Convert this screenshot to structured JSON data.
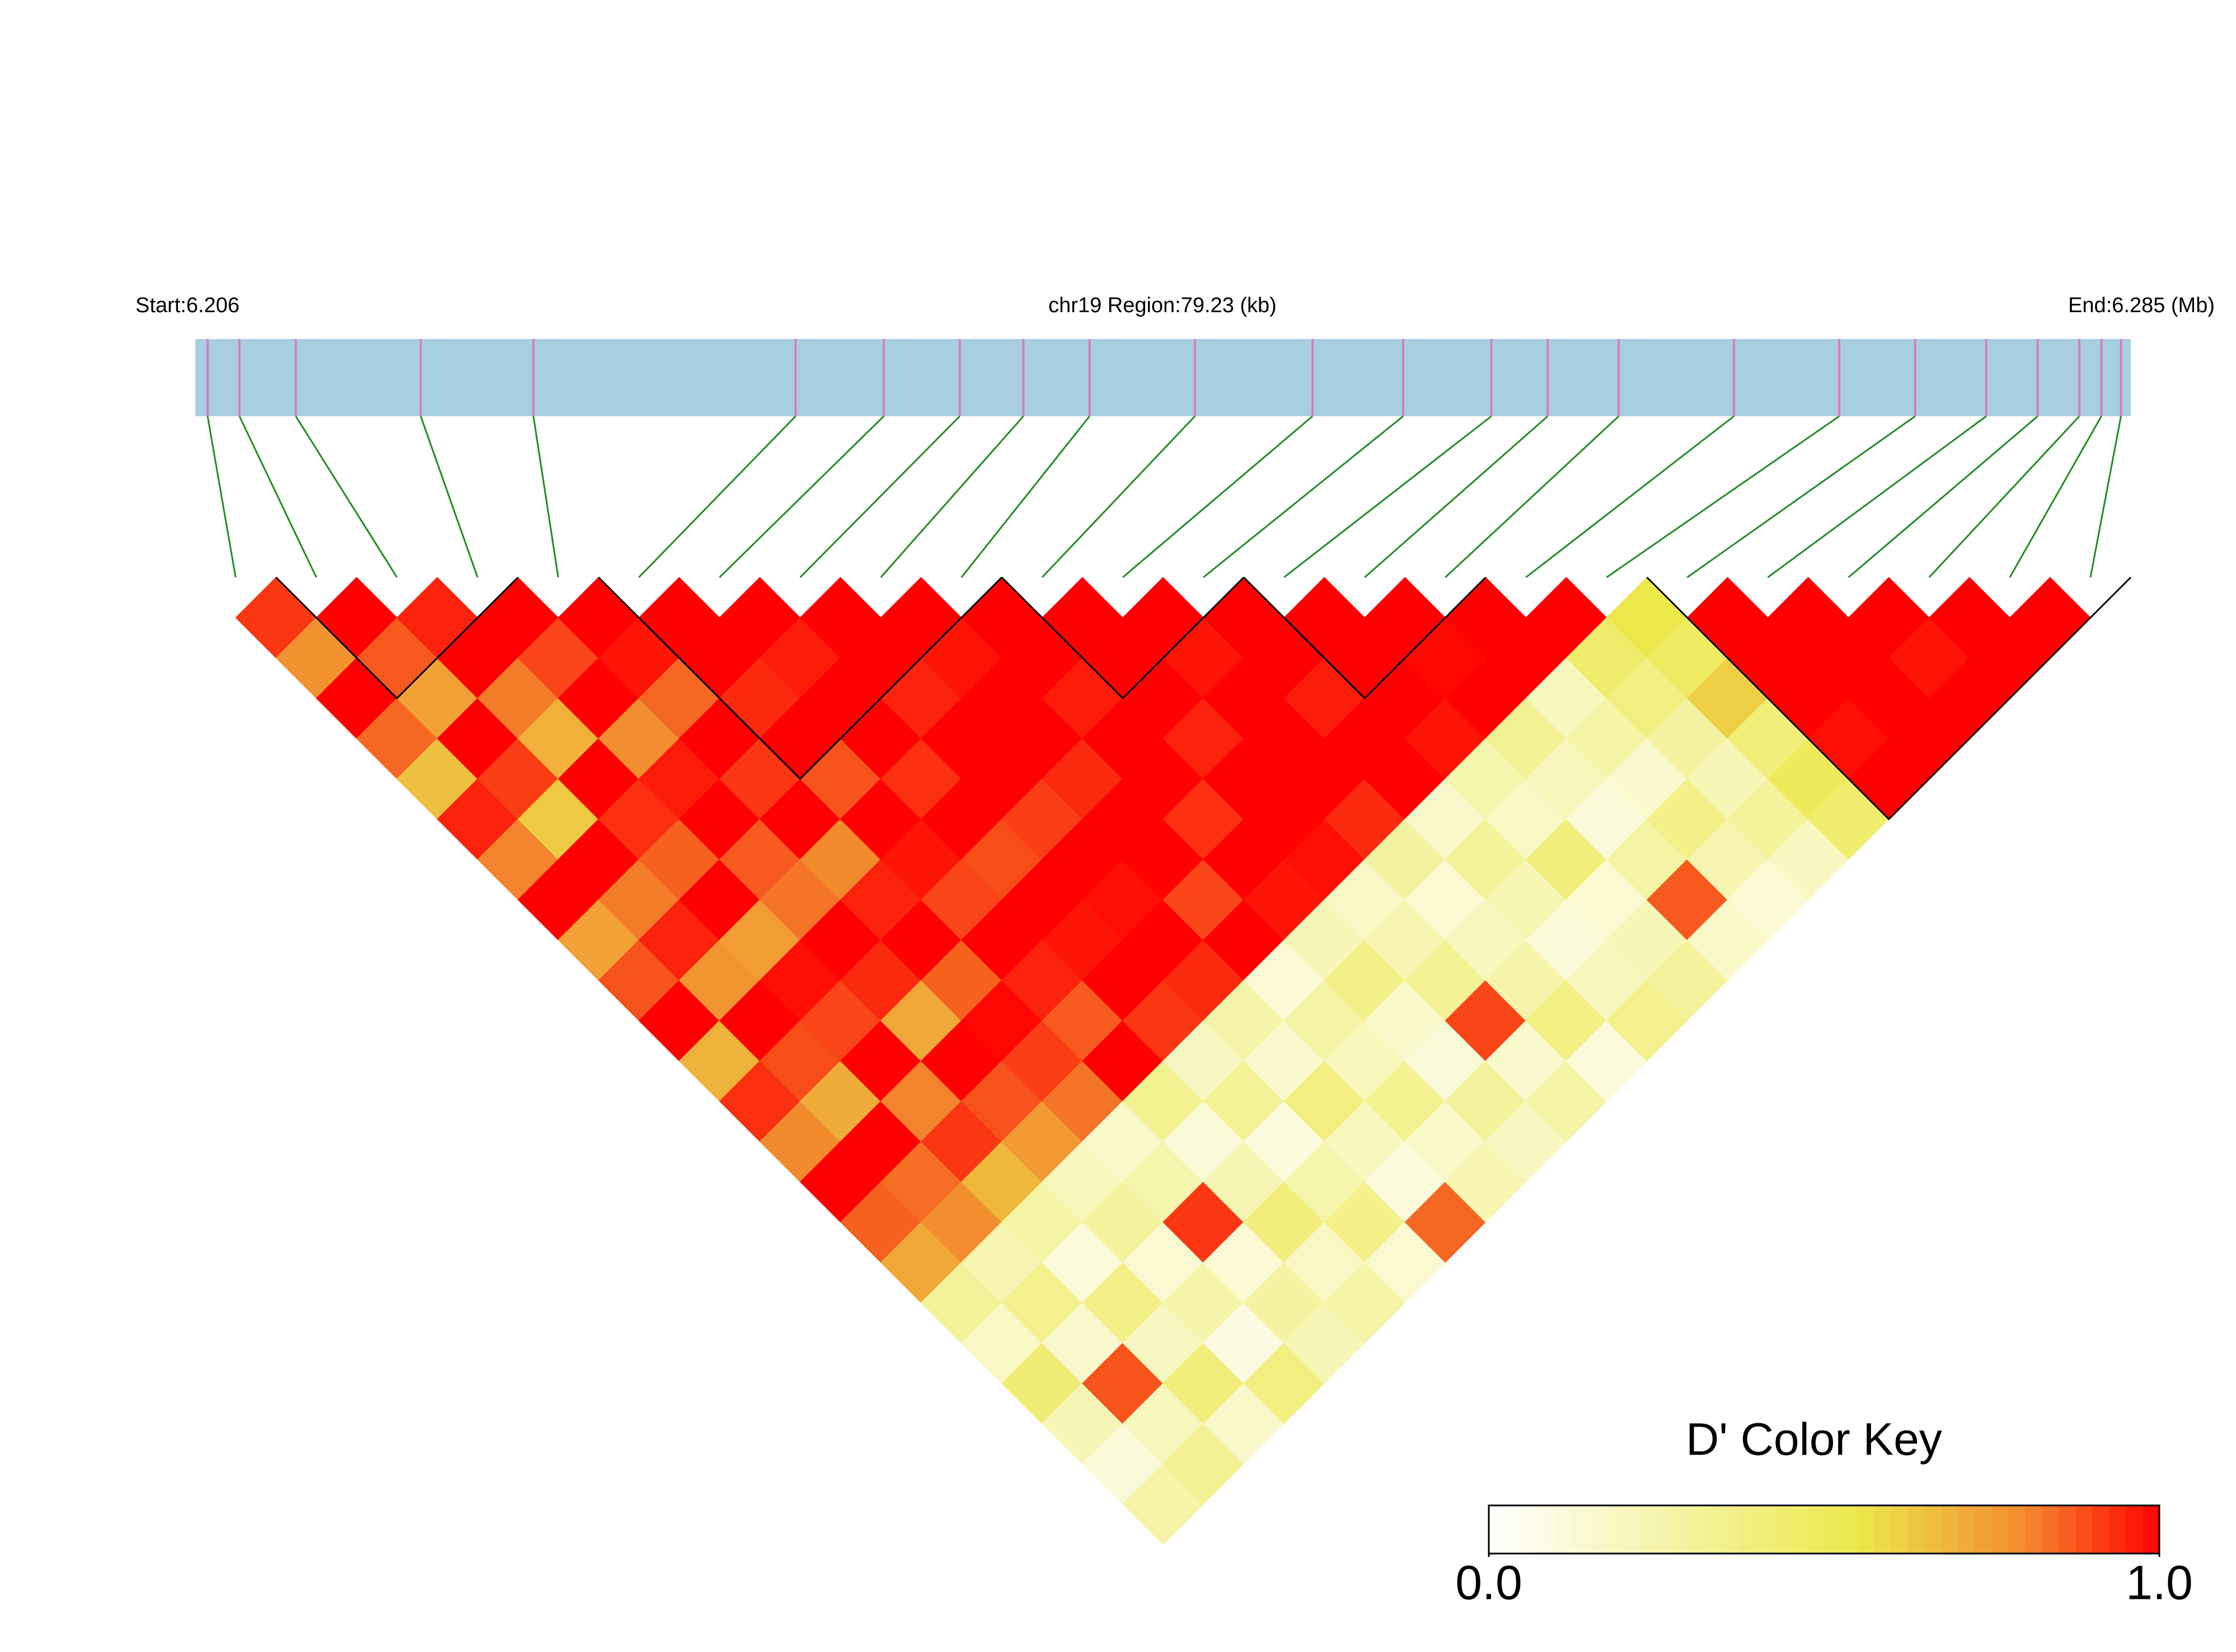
{
  "chart_data": {
    "type": "ld-heatmap",
    "title_left": "Start:6.206",
    "title_center": "chr19 Region:79.23 (kb)",
    "title_right": "End:6.285 (Mb)",
    "xlim": [
      6.206,
      6.285
    ],
    "positions": [
      6.2065,
      6.2078,
      6.2101,
      6.2152,
      6.2198,
      6.2305,
      6.2341,
      6.2372,
      6.2398,
      6.2425,
      6.2468,
      6.2516,
      6.2553,
      6.2589,
      6.2612,
      6.2641,
      6.2688,
      6.2731,
      6.2762,
      6.2791,
      6.2812,
      6.2829,
      6.2838,
      6.2846
    ],
    "track_color": "#a8cfe0",
    "snp_color": "#d97bc2",
    "link_color": "#228b22",
    "values": [
      [
        0.92,
        0.78,
        1,
        0.85,
        0.66,
        0.95,
        0.81,
        1,
        0.74,
        0.88,
        1,
        0.69,
        0.93,
        0.8,
        1,
        0.86,
        0.72,
        0.31,
        0.18,
        0.42,
        0.22,
        0.12,
        0.27
      ],
      [
        1,
        0.87,
        0.74,
        1,
        0.91,
        0.63,
        1,
        0.82,
        0.95,
        0.77,
        1,
        0.89,
        0.71,
        1,
        0.84,
        0.79,
        0.24,
        0.35,
        0.15,
        0.88,
        0.2,
        0.33
      ],
      [
        0.95,
        1,
        0.82,
        0.7,
        1,
        0.93,
        0.86,
        1,
        0.75,
        0.98,
        0.9,
        1,
        0.81,
        0.92,
        0.68,
        0.28,
        0.11,
        0.37,
        0.19,
        0.41,
        0.16
      ],
      [
        1,
        0.9,
        1,
        0.79,
        0.96,
        1,
        0.87,
        0.83,
        1,
        0.94,
        0.72,
        1,
        0.88,
        0.76,
        0.21,
        0.3,
        0.14,
        0.26,
        0.09,
        0.38
      ],
      [
        1,
        0.97,
        0.85,
        1,
        0.92,
        1,
        0.8,
        0.95,
        1,
        0.86,
        0.99,
        0.91,
        0.83,
        0.17,
        0.25,
        0.92,
        0.13,
        0.29,
        0.22
      ],
      [
        1,
        1,
        0.94,
        1,
        0.88,
        1,
        0.97,
        0.9,
        1,
        0.95,
        0.87,
        1,
        0.34,
        0.12,
        0.23,
        0.4,
        0.18,
        0.27
      ],
      [
        1,
        0.96,
        1,
        1,
        0.93,
        1,
        0.89,
        1,
        0.97,
        1,
        0.92,
        0.19,
        0.32,
        0.1,
        0.25,
        0.36,
        0.14
      ],
      [
        1,
        1,
        0.95,
        1,
        1,
        0.91,
        1,
        0.98,
        1,
        0.94,
        0.26,
        0.15,
        0.39,
        0.2,
        0.11,
        0.85
      ],
      [
        1,
        0.97,
        1,
        1,
        0.94,
        1,
        1,
        0.9,
        1,
        0.13,
        0.28,
        0.21,
        0.34,
        0.17,
        0.24
      ],
      [
        1,
        1,
        0.96,
        1,
        1,
        0.93,
        1,
        0.97,
        0.22,
        0.37,
        0.16,
        0.12,
        0.3,
        0.19
      ],
      [
        1,
        1,
        1,
        0.95,
        1,
        1,
        0.98,
        0.18,
        0.24,
        0.33,
        0.9,
        0.15,
        0.27
      ],
      [
        1,
        0.97,
        1,
        1,
        1,
        0.94,
        0.29,
        0.14,
        0.2,
        0.26,
        0.38,
        0.11
      ],
      [
        1,
        1,
        0.96,
        1,
        1,
        0.16,
        0.31,
        0.23,
        0.12,
        0.2,
        0.35
      ],
      [
        1,
        1,
        1,
        0.97,
        0.25,
        0.18,
        0.4,
        0.14,
        0.22,
        0.3
      ],
      [
        1,
        0.99,
        1,
        0.33,
        0.21,
        0.12,
        0.28,
        0.87,
        0.17
      ],
      [
        1,
        1,
        0.2,
        0.27,
        0.15,
        0.36,
        0.24,
        0.13
      ],
      [
        1,
        0.45,
        0.38,
        0.29,
        0.22,
        0.31,
        0.19
      ],
      [
        0.55,
        0.48,
        0.62,
        0.41,
        0.5,
        0.44
      ],
      [
        1,
        1,
        1,
        0.98,
        1
      ],
      [
        1,
        1,
        1,
        1
      ],
      [
        1,
        0.97,
        1
      ],
      [
        1,
        1
      ],
      [
        1
      ]
    ],
    "blocks": [
      [
        1,
        3
      ],
      [
        5,
        9
      ],
      [
        10,
        12
      ],
      [
        13,
        15
      ],
      [
        18,
        23
      ]
    ],
    "colorscale": [
      [
        0,
        "#ffffff"
      ],
      [
        0.55,
        "#ece84c"
      ],
      [
        0.8,
        "#f28a2e"
      ],
      [
        1,
        "#ff0000"
      ]
    ],
    "colorbar": {
      "title": "D' Color Key",
      "ticks": [
        {
          "value": 0,
          "label": "0.0"
        },
        {
          "value": 1,
          "label": "1.0"
        }
      ]
    }
  }
}
